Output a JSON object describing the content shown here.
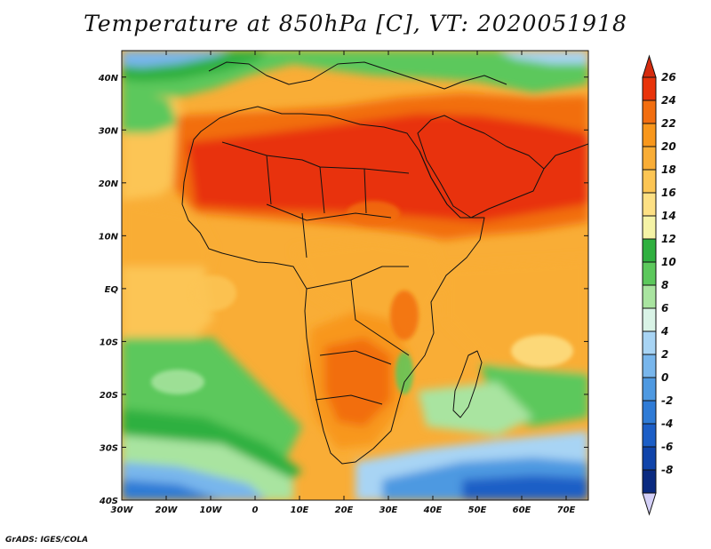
{
  "title": "Temperature at 850hPa [C], VT: 2020051918",
  "footer": "GrADS: IGES/COLA",
  "map": {
    "lon_range": [
      -30,
      75
    ],
    "lat_range": [
      -40,
      45
    ],
    "lat_ticks": [
      {
        "value": 40,
        "label": "40N"
      },
      {
        "value": 30,
        "label": "30N"
      },
      {
        "value": 20,
        "label": "20N"
      },
      {
        "value": 10,
        "label": "10N"
      },
      {
        "value": 0,
        "label": "EQ"
      },
      {
        "value": -10,
        "label": "10S"
      },
      {
        "value": -20,
        "label": "20S"
      },
      {
        "value": -30,
        "label": "30S"
      },
      {
        "value": -40,
        "label": "40S"
      }
    ],
    "lon_ticks": [
      {
        "value": -30,
        "label": "30W"
      },
      {
        "value": -20,
        "label": "20W"
      },
      {
        "value": -10,
        "label": "10W"
      },
      {
        "value": 0,
        "label": "0"
      },
      {
        "value": 10,
        "label": "10E"
      },
      {
        "value": 20,
        "label": "20E"
      },
      {
        "value": 30,
        "label": "30E"
      },
      {
        "value": 40,
        "label": "40E"
      },
      {
        "value": 50,
        "label": "50E"
      },
      {
        "value": 60,
        "label": "60E"
      },
      {
        "value": 70,
        "label": "70E"
      }
    ]
  },
  "colorbar": {
    "levels": [
      {
        "label": "26",
        "color": "#e8330a"
      },
      {
        "label": "24",
        "color": "#f26e10"
      },
      {
        "label": "22",
        "color": "#f8971c"
      },
      {
        "label": "20",
        "color": "#f9ad36"
      },
      {
        "label": "18",
        "color": "#fcc554"
      },
      {
        "label": "16",
        "color": "#fde084"
      },
      {
        "label": "14",
        "color": "#f5f3a6"
      },
      {
        "label": "12",
        "color": "#2fb03f"
      },
      {
        "label": "10",
        "color": "#5cc85c"
      },
      {
        "label": "8",
        "color": "#a9e4a0"
      },
      {
        "label": "6",
        "color": "#d9f3e6"
      },
      {
        "label": "4",
        "color": "#a8d4f4"
      },
      {
        "label": "2",
        "color": "#78b6ec"
      },
      {
        "label": "0",
        "color": "#4e99e1"
      },
      {
        "label": "-2",
        "color": "#2f7bd6"
      },
      {
        "label": "-4",
        "color": "#1c5ec6"
      },
      {
        "label": "-6",
        "color": "#1044aa"
      },
      {
        "label": "-8",
        "color": "#0a2a80"
      }
    ],
    "top_arrow_color": "#d52b0e",
    "bottom_arrow_color": "#d4d0f8"
  }
}
